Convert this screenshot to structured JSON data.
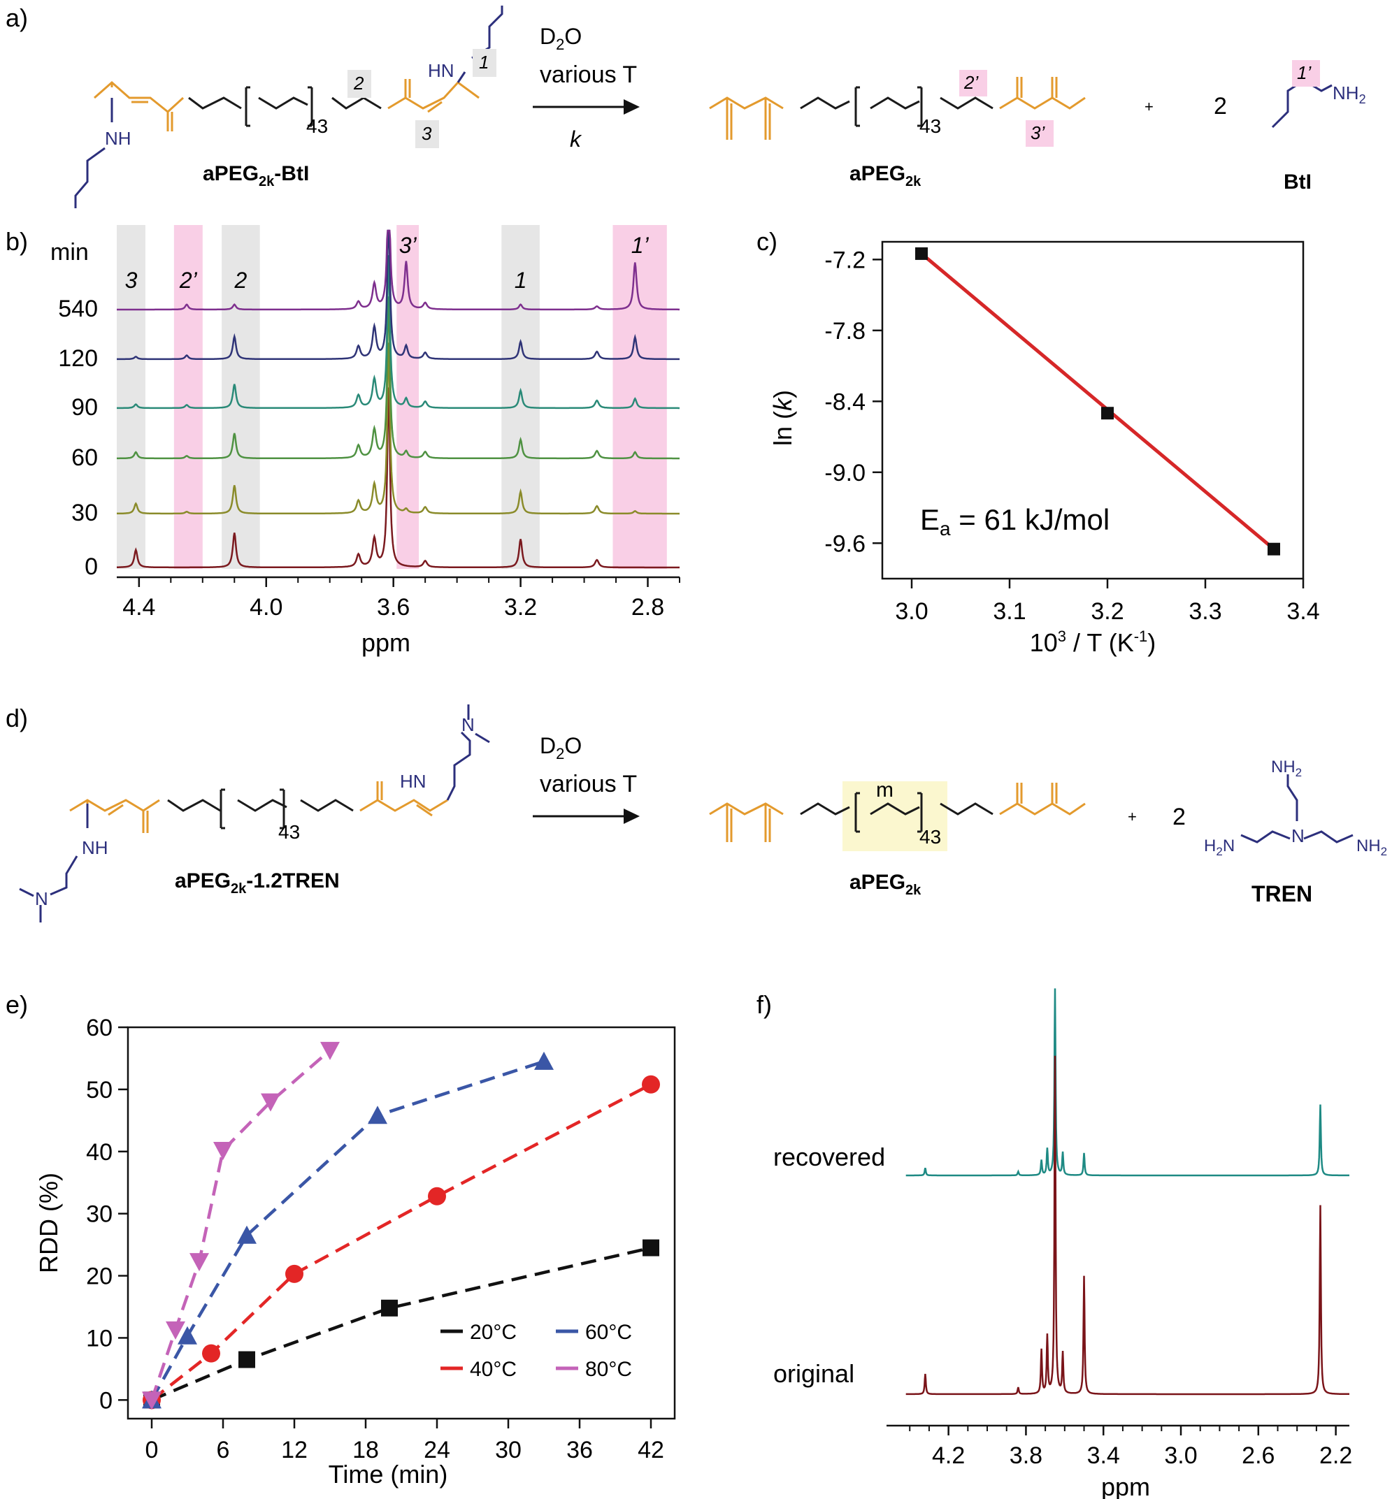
{
  "panel_labels": {
    "a": "a)",
    "b": "b)",
    "c": "c)",
    "d": "d)",
    "e": "e)",
    "f": "f)"
  },
  "colors": {
    "orange": "#e39a2d",
    "navy": "#2c2f7c",
    "grey_band": "#e6e6e6",
    "pink_band": "#f9cfe6",
    "yellow_band": "#fbf7cf",
    "red_line": "#d62728",
    "black": "#111111",
    "s40": "#e32626",
    "s60": "#3a56a6",
    "s80": "#c463b8",
    "teal": "#1e8a84",
    "maroon": "#7a1419"
  },
  "scheme_a": {
    "reactant": {
      "name": "aPEG",
      "sub": "2k",
      "suffix": "-BtI",
      "repeat": "43",
      "subst": "NH",
      "subst2": "HN"
    },
    "conditions": {
      "line1": "D",
      "line1_sub": "2",
      "line1_end": "O",
      "line2": "various T",
      "line3": "k"
    },
    "product": {
      "name": "aPEG",
      "sub": "2k",
      "repeat": "43"
    },
    "plus": "+",
    "coef": "2",
    "byproduct": {
      "name": "BtI",
      "amine": "NH",
      "amine_sub": "2"
    },
    "labels": {
      "l1": "1",
      "l2": "2",
      "l3": "3",
      "l1p": "1’",
      "l2p": "2’",
      "l3p": "3’"
    }
  },
  "scheme_d": {
    "reactant": {
      "name": "aPEG",
      "sub": "2k",
      "suffix": "-1.2TREN",
      "repeat": "43",
      "subst": "NH",
      "subst2": "HN",
      "n": "N"
    },
    "conditions": {
      "line1": "D",
      "line1_sub": "2",
      "line1_end": "O",
      "line2": "various T"
    },
    "product": {
      "name": "aPEG",
      "sub": "2k",
      "repeat": "43",
      "m": "m"
    },
    "plus": "+",
    "coef": "2",
    "byproduct": {
      "name": "TREN",
      "nh2": "NH",
      "nh2_sub": "2",
      "h2n": "H",
      "h2n_sub": "2",
      "h2n_end": "N",
      "n": "N"
    }
  },
  "chart_data": [
    {
      "panel": "b",
      "type": "line",
      "title": "",
      "xlabel": "ppm",
      "ylabel": "min",
      "x_ticks": [
        4.4,
        4.0,
        3.6,
        3.2,
        2.8
      ],
      "xlim": [
        4.47,
        2.7
      ],
      "series": [
        {
          "name": "0",
          "color": "#7b1a1f"
        },
        {
          "name": "30",
          "color": "#8a8b2a"
        },
        {
          "name": "60",
          "color": "#4f9242"
        },
        {
          "name": "90",
          "color": "#2a8a78"
        },
        {
          "name": "120",
          "color": "#2f3477"
        },
        {
          "name": "540",
          "color": "#7e2f8e"
        }
      ],
      "peaks": [
        {
          "label": "3",
          "ppm": 4.41,
          "heights": [
            0.28,
            0.16,
            0.1,
            0.06,
            0.04,
            0.0
          ]
        },
        {
          "label": "2’",
          "ppm": 4.25,
          "heights": [
            0.0,
            0.03,
            0.04,
            0.05,
            0.06,
            0.08
          ]
        },
        {
          "label": "2",
          "ppm": 4.1,
          "heights": [
            0.55,
            0.45,
            0.4,
            0.38,
            0.36,
            0.08
          ]
        },
        {
          "label": "3’",
          "ppm": 3.56,
          "heights": [
            0.0,
            0.06,
            0.1,
            0.14,
            0.2,
            0.75
          ]
        },
        {
          "label": "1",
          "ppm": 3.2,
          "heights": [
            0.45,
            0.35,
            0.3,
            0.28,
            0.28,
            0.08
          ]
        },
        {
          "label": "1’",
          "ppm": 2.84,
          "heights": [
            0.0,
            0.04,
            0.1,
            0.15,
            0.35,
            0.75
          ]
        }
      ],
      "bands": [
        {
          "label": "3",
          "from": 4.47,
          "to": 4.38,
          "kind": "grey"
        },
        {
          "label": "2’",
          "from": 4.29,
          "to": 4.2,
          "kind": "pink"
        },
        {
          "label": "2",
          "from": 4.14,
          "to": 4.02,
          "kind": "grey"
        },
        {
          "label": "3’",
          "from": 3.59,
          "to": 3.52,
          "kind": "pink"
        },
        {
          "label": "1",
          "from": 3.26,
          "to": 3.14,
          "kind": "grey"
        },
        {
          "label": "1’",
          "from": 2.91,
          "to": 2.74,
          "kind": "pink"
        }
      ]
    },
    {
      "panel": "c",
      "type": "scatter",
      "title": "",
      "xlabel": "10³ / T (K⁻¹)",
      "ylabel": "ln (k)",
      "xlim": [
        2.97,
        3.4
      ],
      "ylim": [
        -9.9,
        -7.05
      ],
      "x_ticks": [
        3.0,
        3.1,
        3.2,
        3.3,
        3.4
      ],
      "y_ticks": [
        -7.2,
        -7.8,
        -8.4,
        -9.0,
        -9.6
      ],
      "points": [
        {
          "x": 3.01,
          "y": -7.15
        },
        {
          "x": 3.2,
          "y": -8.5
        },
        {
          "x": 3.37,
          "y": -9.65
        }
      ],
      "fit": [
        {
          "x": 3.01,
          "y": -7.15
        },
        {
          "x": 3.37,
          "y": -9.65
        }
      ],
      "annotation": {
        "main": "E",
        "sub": "a",
        "rest": " = 61 kJ/mol"
      }
    },
    {
      "panel": "e",
      "type": "line",
      "title": "",
      "xlabel": "Time (min)",
      "ylabel": "RDD (%)",
      "xlim": [
        -2,
        44
      ],
      "ylim": [
        -3,
        60
      ],
      "x_ticks": [
        0,
        6,
        12,
        18,
        24,
        30,
        36,
        42
      ],
      "y_ticks": [
        0,
        10,
        20,
        30,
        40,
        50,
        60
      ],
      "legend": "bottom-right",
      "series": [
        {
          "name": "20°C",
          "marker": "square",
          "color": "#111111",
          "x": [
            0,
            8,
            20,
            42
          ],
          "y": [
            0,
            6.5,
            14.8,
            24.5
          ]
        },
        {
          "name": "40°C",
          "marker": "circle",
          "color": "#e32626",
          "x": [
            0,
            5,
            12,
            24,
            42
          ],
          "y": [
            0,
            7.5,
            20.3,
            32.8,
            50.8
          ]
        },
        {
          "name": "60°C",
          "marker": "triangle-up",
          "color": "#3a56a6",
          "x": [
            0,
            3,
            8,
            19,
            33
          ],
          "y": [
            0,
            10.3,
            26.5,
            45.8,
            54.5
          ]
        },
        {
          "name": "80°C",
          "marker": "triangle-down",
          "color": "#c463b8",
          "x": [
            0,
            2,
            4,
            6,
            10,
            15
          ],
          "y": [
            0,
            11.3,
            22.3,
            40.2,
            48.0,
            56.3
          ]
        }
      ]
    },
    {
      "panel": "f",
      "type": "line",
      "title": "",
      "xlabel": "ppm",
      "xlim": [
        4.52,
        2.13
      ],
      "x_ticks": [
        4.2,
        3.8,
        3.4,
        3.0,
        2.6,
        2.2
      ],
      "series": [
        {
          "name": "recovered",
          "color": "#1e8a84"
        },
        {
          "name": "original",
          "color": "#7a1419"
        }
      ],
      "peaks": [
        {
          "ppm": 4.32,
          "heights": [
            0.04,
            0.06
          ]
        },
        {
          "ppm": 3.84,
          "heights": [
            0.02,
            0.02
          ]
        },
        {
          "ppm": 3.72,
          "heights": [
            0.08,
            0.13
          ]
        },
        {
          "ppm": 3.69,
          "heights": [
            0.14,
            0.17
          ]
        },
        {
          "ppm": 3.65,
          "heights": [
            1.0,
            1.0
          ]
        },
        {
          "ppm": 3.61,
          "heights": [
            0.12,
            0.12
          ]
        },
        {
          "ppm": 3.5,
          "heights": [
            0.12,
            0.35
          ]
        },
        {
          "ppm": 2.28,
          "heights": [
            0.38,
            0.56
          ]
        }
      ]
    }
  ]
}
